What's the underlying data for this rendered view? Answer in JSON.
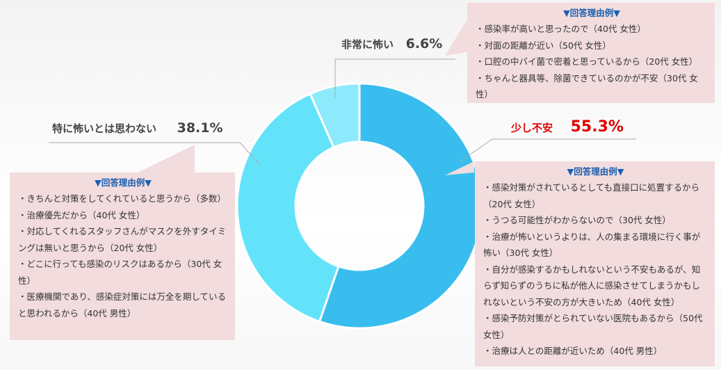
{
  "chart_data": {
    "type": "pie",
    "donut": true,
    "slices": [
      {
        "label": "少し不安",
        "value": 55.3,
        "value_label": "55.3%",
        "color": "#38bdee"
      },
      {
        "label": "特に怖いとは思わない",
        "value": 38.1,
        "value_label": "38.1%",
        "color": "#63e3fa"
      },
      {
        "label": "非常に怖い",
        "value": 6.6,
        "value_label": "6.6%",
        "color": "#8ceafc"
      }
    ],
    "highlight_color": "#e00000"
  },
  "callouts": {
    "head": "▼回答理由例▼",
    "very_scared": [
      "・感染率が高いと思ったので（40代 女性）",
      "・対面の距離が近い（50代 女性）",
      "・口腔の中バイ菌で密着と思っているから（20代 女性）",
      "・ちゃんと器具等、除菌できているのかが不安（30代 女性）"
    ],
    "not_scared": [
      "・きちんと対策をしてくれていると思うから（多数）",
      "・治療優先だから（40代 女性）",
      "・対応してくれるスタッフさんがマスクを外すタイミングは無いと思うから（20代 女性）",
      "・どこに行っても感染のリスクはあるから（30代 女性）",
      "・医療機関であり、感染症対策には万全を期していると思われるから（40代 男性）"
    ],
    "slightly_anxious": [
      "・感染対策がされているとしても直接口に処置するから（20代 女性）",
      "・うつる可能性がわからないので（30代 女性）",
      "・治療が怖いというよりは、人の集まる環境に行く事が怖い（30代 女性）",
      "・自分が感染するかもしれないという不安もあるが、知らず知らずのうちに私が他人に感染させてしまうかもしれないという不安の方が大きいため（40代 女性）",
      "・感染予防対策がとられていない医院もあるから（50代 女性）",
      "・治療は人との距離が近いため（40代 男性）"
    ]
  }
}
